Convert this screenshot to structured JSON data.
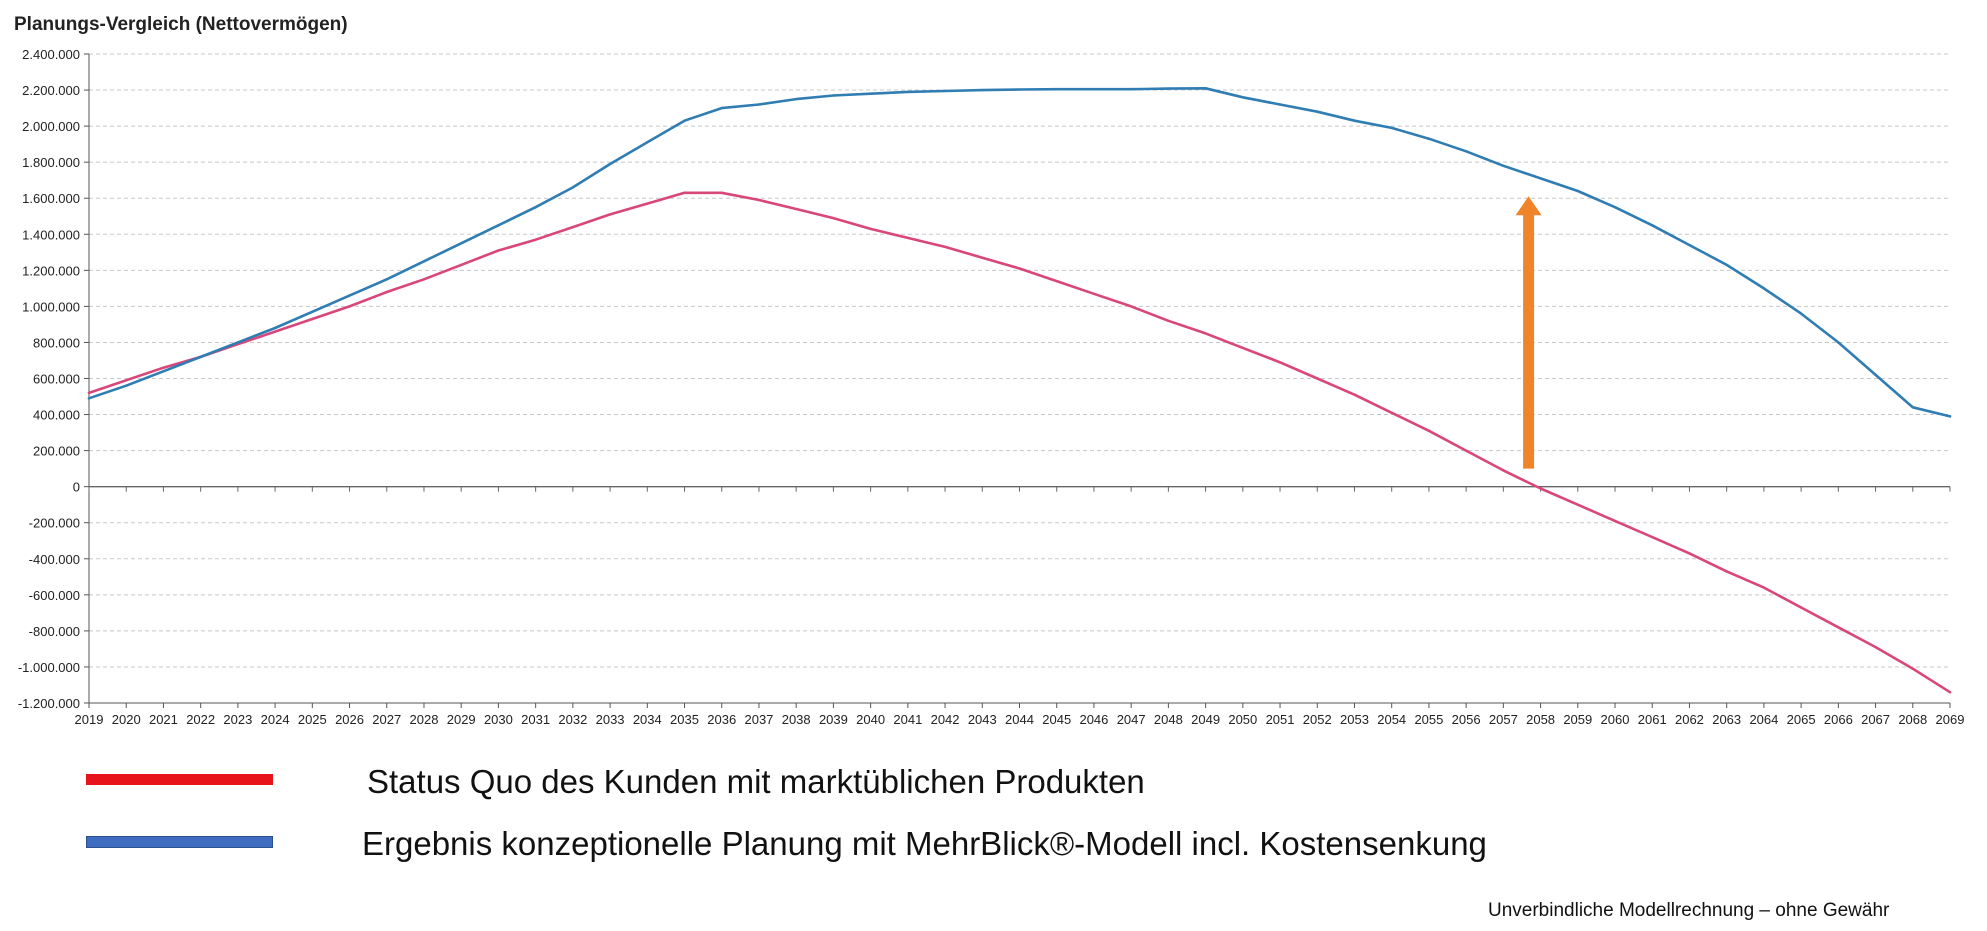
{
  "chart_data": {
    "type": "line",
    "title": "Planungs-Vergleich (Nettovermögen)",
    "xlabel": "",
    "ylabel": "",
    "x_categories": [
      "2019",
      "2020",
      "2021",
      "2022",
      "2023",
      "2024",
      "2025",
      "2026",
      "2027",
      "2028",
      "2029",
      "2030",
      "2031",
      "2032",
      "2033",
      "2034",
      "2035",
      "2036",
      "2037",
      "2038",
      "2039",
      "2040",
      "2041",
      "2042",
      "2043",
      "2044",
      "2045",
      "2046",
      "2047",
      "2048",
      "2049",
      "2050",
      "2051",
      "2052",
      "2053",
      "2054",
      "2055",
      "2056",
      "2057",
      "2058",
      "2059",
      "2060",
      "2061",
      "2062",
      "2063",
      "2064",
      "2065",
      "2066",
      "2067",
      "2068",
      "2069"
    ],
    "ylim": [
      -1200000,
      2400000
    ],
    "y_ticks": [
      2400000,
      2200000,
      2000000,
      1800000,
      1600000,
      1400000,
      1200000,
      1000000,
      800000,
      600000,
      400000,
      200000,
      0,
      -200000,
      -400000,
      -600000,
      -800000,
      -1000000,
      -1200000
    ],
    "y_tick_labels": [
      "2.400.000",
      "2.200.000",
      "2.000.000",
      "1.800.000",
      "1.600.000",
      "1.400.000",
      "1.200.000",
      "1.000.000",
      "800.000",
      "600.000",
      "400.000",
      "200.000",
      "0",
      "-200.000",
      "-400.000",
      "-600.000",
      "-800.000",
      "-1.000.000",
      "-1.200.000"
    ],
    "grid": "horizontal dashed",
    "series": [
      {
        "key": "status_quo",
        "color": "#d9477a",
        "values": [
          520000,
          590000,
          660000,
          720000,
          790000,
          860000,
          930000,
          1000000,
          1080000,
          1150000,
          1230000,
          1310000,
          1370000,
          1440000,
          1510000,
          1570000,
          1630000,
          1630000,
          1590000,
          1540000,
          1490000,
          1430000,
          1380000,
          1330000,
          1270000,
          1210000,
          1140000,
          1070000,
          1000000,
          920000,
          850000,
          770000,
          690000,
          600000,
          510000,
          410000,
          310000,
          200000,
          90000,
          -10000,
          -100000,
          -190000,
          -280000,
          -370000,
          -470000,
          -560000,
          -670000,
          -780000,
          -890000,
          -1010000,
          -1140000
        ]
      },
      {
        "key": "mehrblick",
        "color": "#2f7db3",
        "values": [
          490000,
          560000,
          640000,
          720000,
          800000,
          880000,
          970000,
          1060000,
          1150000,
          1250000,
          1350000,
          1450000,
          1550000,
          1660000,
          1790000,
          1910000,
          2030000,
          2100000,
          2120000,
          2150000,
          2170000,
          2180000,
          2190000,
          2195000,
          2200000,
          2203000,
          2205000,
          2205000,
          2205000,
          2208000,
          2210000,
          2160000,
          2120000,
          2080000,
          2030000,
          1990000,
          1930000,
          1860000,
          1780000,
          1710000,
          1640000,
          1550000,
          1450000,
          1340000,
          1230000,
          1100000,
          960000,
          800000,
          620000,
          440000,
          390000
        ]
      }
    ],
    "annotation": {
      "type": "arrow",
      "color": "#ef8429",
      "x_category": "2058",
      "from_value": 100000,
      "to_value": 1600000
    }
  },
  "legend": [
    {
      "label": "Status Quo des Kunden mit marktüblichen Produkten",
      "color": "#e8141b"
    },
    {
      "label": "Ergebnis konzeptionelle Planung mit MehrBlick®-Modell  incl. Kostensenkung",
      "color": "#3d6cc0"
    }
  ],
  "footnote": "Unverbindliche Modellrechnung – ohne Gewähr"
}
